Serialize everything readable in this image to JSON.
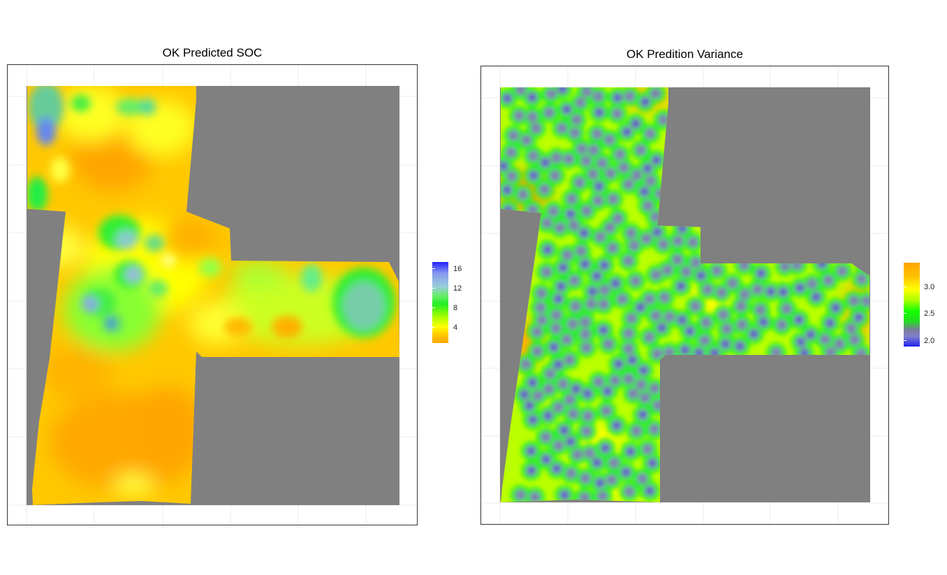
{
  "maps": [
    {
      "title": "OK Predicted SOC",
      "legend": {
        "ticks": [
          "4",
          "8",
          "12",
          "16"
        ],
        "colors": [
          "#ffa500",
          "#ffff00",
          "#00ee00",
          "#88aaee",
          "#0000ff"
        ]
      }
    },
    {
      "title": "OK Predition Variance",
      "legend": {
        "ticks": [
          "2.0",
          "2.5",
          "3.0"
        ],
        "colors": [
          "#2020ee",
          "#7a7a99",
          "#00ff00",
          "#ffff00",
          "#ffa500"
        ]
      }
    }
  ],
  "colors": {
    "no_data": "#808080",
    "grid": "#ebebeb",
    "border": "#333333"
  }
}
